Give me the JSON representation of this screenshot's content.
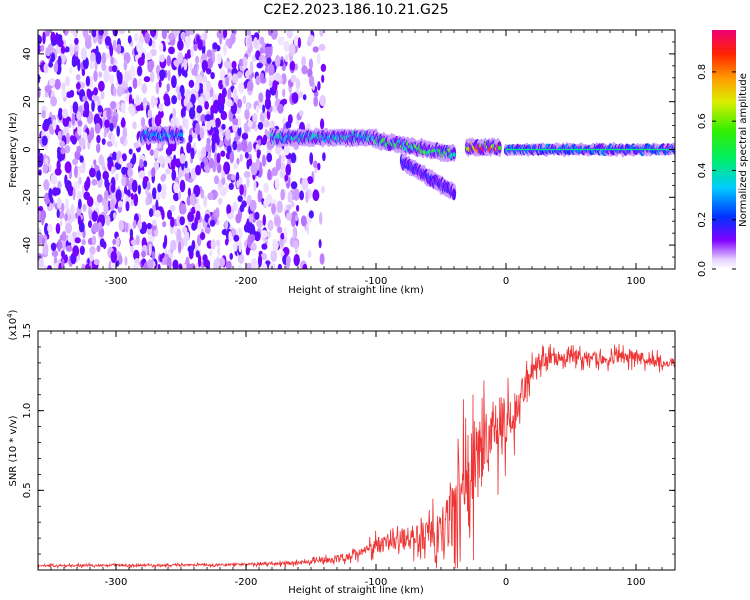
{
  "title": "C2E2.2023.186.10.21.G25",
  "chart_data": [
    {
      "type": "heatmap",
      "xlabel": "Height of straight line (km)",
      "ylabel": "Frequency (Hz)",
      "xlim": [
        -360,
        130
      ],
      "ylim": [
        -50,
        50
      ],
      "xticks": [
        -300,
        -200,
        -100,
        0,
        100
      ],
      "yticks": [
        -40,
        -20,
        0,
        20,
        40
      ],
      "colorbar": {
        "label": "Normalized spectral amplitude",
        "range": [
          0.0,
          0.97
        ],
        "ticks": [
          "0.0",
          "0.2",
          "0.4",
          "0.6",
          "0.8"
        ]
      },
      "features": [
        {
          "x_range": [
            -360,
            -160
          ],
          "y_range": [
            -50,
            50
          ],
          "amplitude": 0.1,
          "kind": "broadband noise"
        },
        {
          "x_range": [
            -160,
            -140
          ],
          "y_range": [
            -50,
            50
          ],
          "amplitude": 0.05,
          "kind": "sparse noise"
        },
        {
          "x_range": [
            -280,
            -250
          ],
          "y_center": 6,
          "amplitude": 0.35,
          "kind": "weak line"
        },
        {
          "x_range": [
            -180,
            -100
          ],
          "y_center": 5,
          "amplitude": 0.45,
          "kind": "line"
        },
        {
          "x_range": [
            -100,
            -40
          ],
          "y_center": 0,
          "amplitude": 0.6,
          "kind": "descending line"
        },
        {
          "x_range": [
            -80,
            -40
          ],
          "y_center": -15,
          "amplitude": 0.2,
          "kind": "branch"
        },
        {
          "x_range": [
            -30,
            -5
          ],
          "y_center": 1,
          "amplitude": 0.97,
          "kind": "peak"
        },
        {
          "x_range": [
            0,
            130
          ],
          "y_center": 0,
          "amplitude": 0.4,
          "kind": "steady line"
        }
      ]
    },
    {
      "type": "line",
      "xlabel": "Height of straight line (km)",
      "ylabel": "SNR (10 * v/v)",
      "y_multiplier": "(x10^4)",
      "xlim": [
        -360,
        130
      ],
      "ylim": [
        0,
        1.5
      ],
      "xticks": [
        -300,
        -200,
        -100,
        0,
        100
      ],
      "yticks": [
        "0.5",
        "1.0",
        "1.5"
      ],
      "series": [
        {
          "color": "#ee3333",
          "x": [
            -360,
            -300,
            -250,
            -200,
            -170,
            -150,
            -130,
            -120,
            -110,
            -100,
            -90,
            -80,
            -70,
            -60,
            -50,
            -45,
            -40,
            -35,
            -30,
            -25,
            -20,
            -15,
            -10,
            -5,
            0,
            5,
            10,
            15,
            20,
            25,
            30,
            40,
            50,
            60,
            70,
            80,
            90,
            100,
            110,
            120,
            130
          ],
          "y": [
            0.025,
            0.03,
            0.03,
            0.035,
            0.04,
            0.05,
            0.07,
            0.09,
            0.12,
            0.15,
            0.18,
            0.2,
            0.2,
            0.21,
            0.22,
            0.3,
            0.35,
            0.45,
            0.55,
            0.65,
            0.75,
            0.8,
            0.85,
            0.88,
            0.9,
            0.95,
            1.05,
            1.15,
            1.25,
            1.3,
            1.33,
            1.34,
            1.35,
            1.33,
            1.33,
            1.33,
            1.34,
            1.33,
            1.32,
            1.3,
            1.3
          ],
          "noise": [
            0.01,
            0.01,
            0.01,
            0.01,
            0.015,
            0.02,
            0.03,
            0.04,
            0.05,
            0.07,
            0.08,
            0.1,
            0.12,
            0.15,
            0.2,
            0.25,
            0.35,
            0.4,
            0.45,
            0.45,
            0.4,
            0.35,
            0.3,
            0.3,
            0.25,
            0.2,
            0.15,
            0.12,
            0.1,
            0.08,
            0.07,
            0.06,
            0.06,
            0.06,
            0.06,
            0.06,
            0.06,
            0.06,
            0.06,
            0.05,
            0.05
          ]
        }
      ]
    }
  ]
}
